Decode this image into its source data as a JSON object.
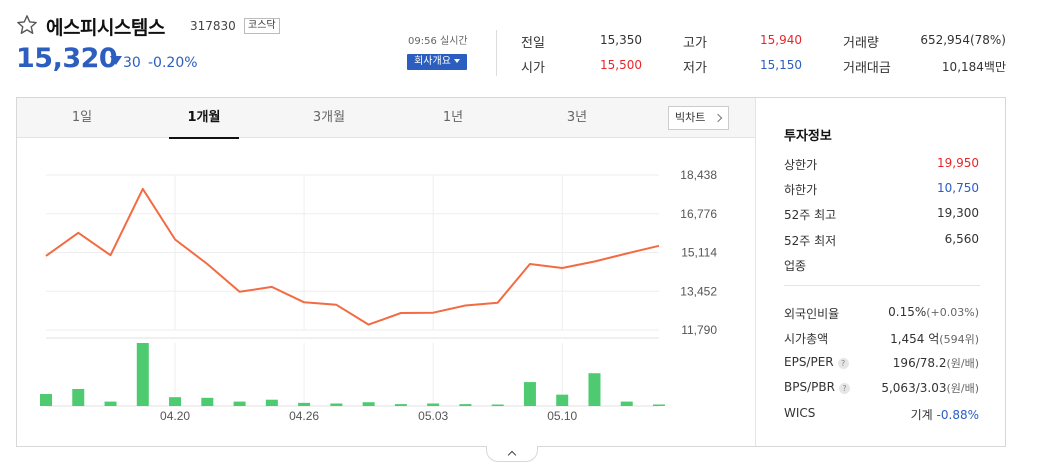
{
  "stock": {
    "name": "에스피시스템스",
    "code": "317830",
    "market": "코스닥",
    "price": "15,320",
    "change": "30",
    "change_pct": "-0.20%",
    "direction": "down"
  },
  "realtime": {
    "time_label": "09:56 실시간",
    "company_button": "회사개요"
  },
  "quote": {
    "prev_close": {
      "label": "전일",
      "value": "15,350"
    },
    "open": {
      "label": "시가",
      "value": "15,500"
    },
    "high": {
      "label": "고가",
      "value": "15,940"
    },
    "low": {
      "label": "저가",
      "value": "15,150"
    },
    "volume": {
      "label": "거래량",
      "value": "652,954(78%)"
    },
    "trade_value": {
      "label": "거래대금",
      "value": "10,184백만"
    }
  },
  "tabs": [
    "1일",
    "1개월",
    "3개월",
    "1년",
    "3년"
  ],
  "active_tab": "1개월",
  "big_chart_label": "빅차트",
  "chart_data": {
    "type": "line",
    "y_ticks": [
      "18,438",
      "16,776",
      "15,114",
      "13,452",
      "11,790"
    ],
    "y_range": [
      11790,
      18438
    ],
    "x_ticks": [
      "04.20",
      "04.26",
      "05.03",
      "05.10"
    ],
    "price": [
      14970,
      15960,
      15000,
      17840,
      15670,
      14620,
      13430,
      13640,
      12980,
      12870,
      12020,
      12520,
      12530,
      12840,
      12960,
      14620,
      14450,
      14730,
      15070,
      15400
    ],
    "volume_relative": [
      0.19,
      0.27,
      0.07,
      1.0,
      0.14,
      0.13,
      0.07,
      0.1,
      0.05,
      0.04,
      0.06,
      0.03,
      0.04,
      0.03,
      0.01,
      0.38,
      0.18,
      0.52,
      0.07,
      0.01
    ],
    "line_color": "#f26b43",
    "volume_color": "#4ecb71"
  },
  "invest": {
    "title": "투자정보",
    "upper_limit": {
      "label": "상한가",
      "value": "19,950"
    },
    "lower_limit": {
      "label": "하한가",
      "value": "10,750"
    },
    "w52_high": {
      "label": "52주 최고",
      "value": "19,300"
    },
    "w52_low": {
      "label": "52주 최저",
      "value": "6,560"
    },
    "industry": {
      "label": "업종"
    },
    "foreign_ratio": {
      "label": "외국인비율",
      "value": "0.15%",
      "sub": "(+0.03%)"
    },
    "market_cap": {
      "label": "시가총액",
      "value": "1,454 억",
      "sub": "(594위)"
    },
    "eps_per": {
      "label": "EPS/PER",
      "value": "196/78.2",
      "sub": "(원/배)"
    },
    "bps_pbr": {
      "label": "BPS/PBR",
      "value": "5,063/3.03",
      "sub": "(원/배)"
    },
    "wics": {
      "label": "WICS",
      "value": "기계",
      "change": "-0.88%"
    }
  }
}
